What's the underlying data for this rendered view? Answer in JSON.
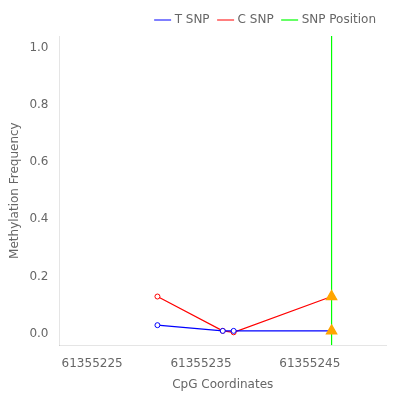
{
  "chart_data": {
    "type": "line",
    "xlabel": "CpG Coordinates",
    "ylabel": "Methylation Frequency",
    "xlim": [
      61355222,
      61355252
    ],
    "ylim": [
      -0.04,
      1.04
    ],
    "xticks": [
      61355225,
      61355235,
      61355245
    ],
    "yticks": [
      {
        "value": 0.0,
        "label": "0.0"
      },
      0.2,
      0.4,
      0.6,
      0.8,
      {
        "value": 1.0,
        "label": "1.0"
      }
    ],
    "grid": false,
    "legend": "upper right",
    "series": [
      {
        "name": "T SNP",
        "color": "blue",
        "marker": "circle",
        "x": [
          61355231,
          61355237,
          61355238,
          61355247
        ],
        "values": [
          0.03,
          0.01,
          0.01,
          0.01
        ]
      },
      {
        "name": "C SNP",
        "color": "red",
        "marker": "circle",
        "x": [
          61355231,
          61355237,
          61355238,
          61355247
        ],
        "values": [
          0.13,
          0.01,
          0.005,
          0.13
        ]
      },
      {
        "name": "SNP Position",
        "type": "vline",
        "color": "#00FF00",
        "x": [
          61355247
        ]
      },
      {
        "type": "scatter",
        "marker": "triangle",
        "color": "#FFA500",
        "x": [
          61355247,
          61355247
        ],
        "values": [
          0.01,
          0.13
        ]
      }
    ]
  }
}
